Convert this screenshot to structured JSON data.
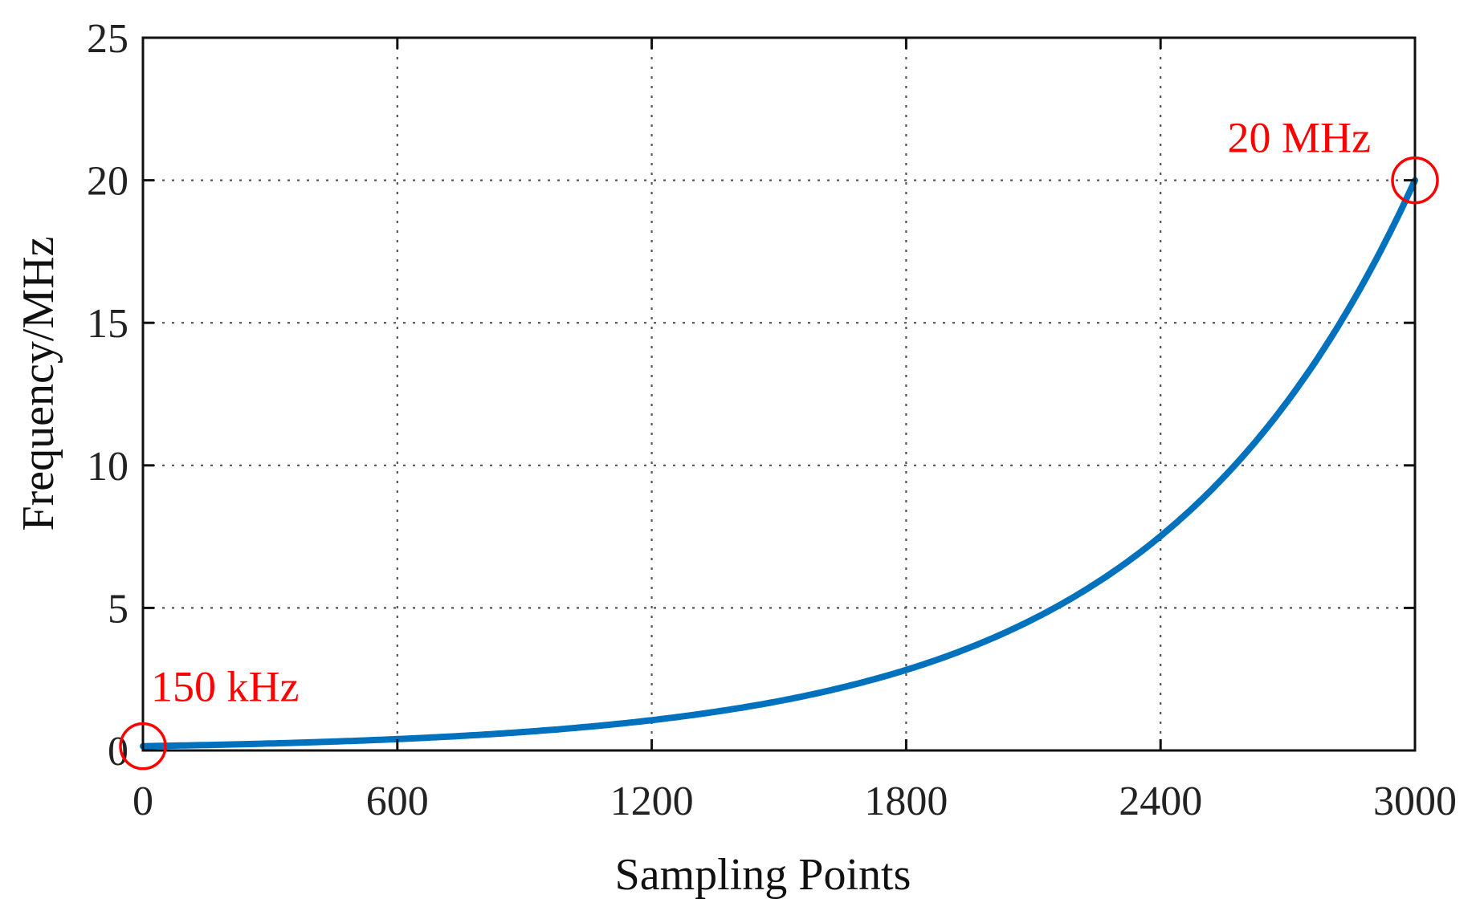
{
  "chart_data": {
    "type": "line",
    "title": "",
    "xlabel": "Sampling Points",
    "ylabel": "Frequency/MHz",
    "xlim": [
      0,
      3000
    ],
    "ylim": [
      0,
      25
    ],
    "x_ticks": [
      0,
      600,
      1200,
      1800,
      2400,
      3000
    ],
    "y_ticks": [
      0,
      5,
      10,
      15,
      20,
      25
    ],
    "grid": true,
    "grid_style": "dotted",
    "legend": false,
    "series": [
      {
        "color": "#0072bd",
        "scale": "logarithmic sweep",
        "start": [
          0,
          0.15
        ],
        "end": [
          3000,
          20
        ],
        "x": [
          0,
          300,
          600,
          900,
          1200,
          1500,
          1800,
          2100,
          2400,
          2700,
          3000
        ],
        "y": [
          0.15,
          0.24,
          0.4,
          0.65,
          1.07,
          1.73,
          2.83,
          4.6,
          7.5,
          12.25,
          20.0
        ]
      }
    ],
    "annotations": [
      {
        "text": "150 kHz",
        "x": 0,
        "y": 0.15,
        "color": "#ff0000",
        "marker": "circle"
      },
      {
        "text": "20 MHz",
        "x": 3000,
        "y": 20,
        "color": "#ff0000",
        "marker": "circle"
      }
    ]
  }
}
